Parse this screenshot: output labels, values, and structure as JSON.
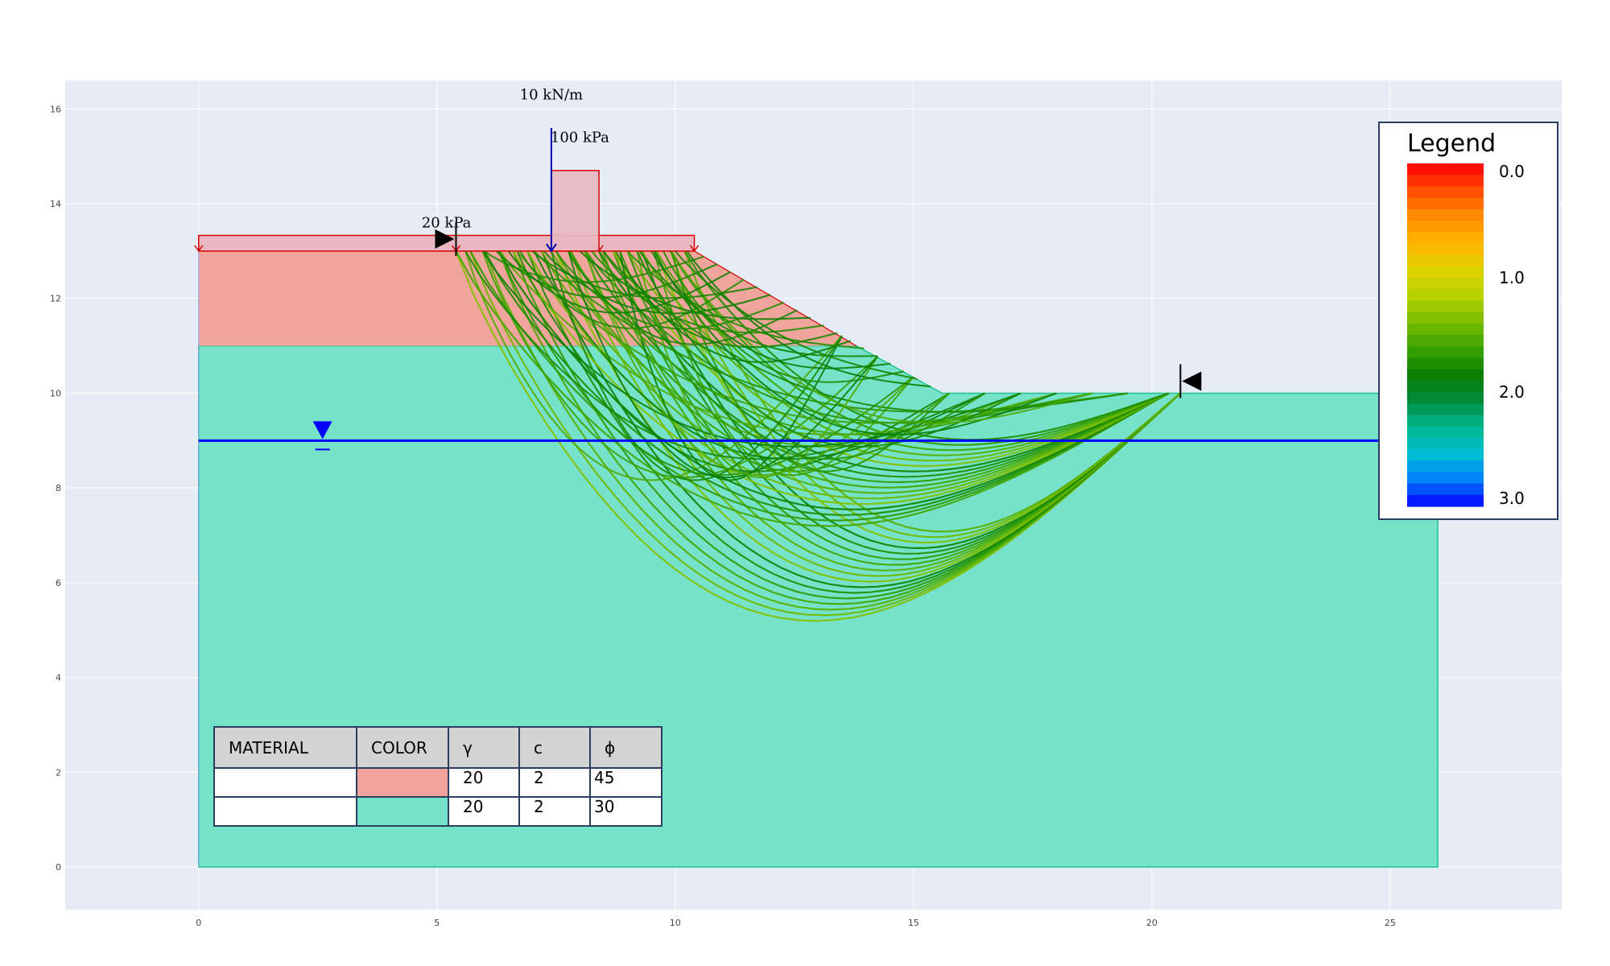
{
  "chart_data": {
    "type": "slope-stability",
    "xlim": [
      -2.8,
      28.6
    ],
    "ylim": [
      -0.9,
      16.6
    ],
    "xticks": [
      "0",
      "5",
      "10",
      "15",
      "20",
      "25"
    ],
    "yticks": [
      "0",
      "2",
      "4",
      "6",
      "8",
      "10",
      "12",
      "14",
      "16"
    ],
    "colors": {
      "plot_bg": "#e5ecf6",
      "grid": "#ffffff",
      "layer_top": "#efa59c",
      "layer_bottom": "#76e2c9",
      "layer_bottom_edge": "#1cc48f",
      "load": "#d90000",
      "load_fill": "#e8b7c0",
      "water": "#0000ff",
      "line_load": "#0000b0"
    },
    "geometry": {
      "ground_surface": [
        [
          0,
          13
        ],
        [
          10.4,
          13
        ],
        [
          15.6,
          10
        ],
        [
          26,
          10
        ]
      ],
      "layer_boundary": [
        [
          0,
          11
        ],
        [
          5.5,
          11
        ],
        [
          13.8,
          11
        ]
      ],
      "model_bottom": 0,
      "model_right": 26,
      "water_table": {
        "y": 9,
        "x_range": [
          0,
          26
        ],
        "symbol_x": 2.6
      },
      "search_limit_left": {
        "x": 5.4,
        "y": 13
      },
      "search_limit_right": {
        "x": 20.6,
        "y": 10
      }
    },
    "loads": {
      "distributed": [
        {
          "label": "20 kPa",
          "x_start": 0,
          "x_end": 10.4,
          "surface_y": 13,
          "magnitude": 20
        },
        {
          "label": "100 kPa",
          "x_start": 7.4,
          "x_end": 8.4,
          "surface_y": 13,
          "magnitude": 100
        }
      ],
      "line": {
        "label": "10 kN/m",
        "x": 7.4,
        "magnitude": 10
      }
    },
    "slip_surfaces": {
      "entry_range": [
        5.4,
        10.4
      ],
      "exit_range": [
        11.0,
        20.6
      ],
      "deepest_y": 5.1
    },
    "legend": {
      "title": "Legend",
      "ticks": [
        "0.0",
        "1.0",
        "2.0",
        "3.0"
      ],
      "range": [
        0,
        3
      ],
      "colorscale": [
        "#ff0000",
        "#ff4a00",
        "#ff8c00",
        "#ffb400",
        "#e0d200",
        "#b8d200",
        "#7cbd00",
        "#3aa300",
        "#0a7f00",
        "#008a3c",
        "#00b890",
        "#00bfd0",
        "#0080ff",
        "#0000ff"
      ]
    },
    "materials_table": {
      "headers": [
        "MATERIAL",
        "COLOR",
        "γ",
        "c",
        "ϕ"
      ],
      "rows": [
        {
          "name": "",
          "color": "#efa59c",
          "gamma": "20",
          "c": "2",
          "phi": "45"
        },
        {
          "name": "",
          "color": "#76e2c9",
          "gamma": "20",
          "c": "2",
          "phi": "30"
        }
      ]
    }
  }
}
